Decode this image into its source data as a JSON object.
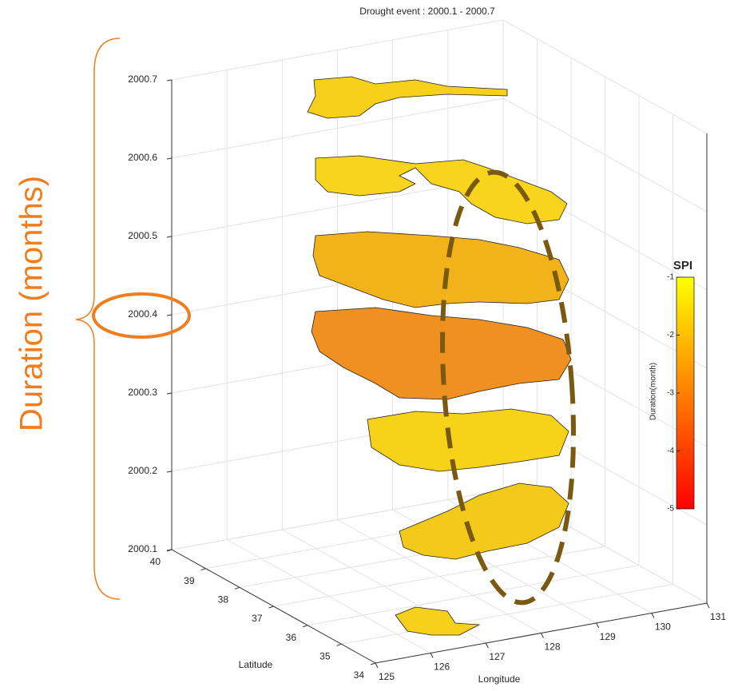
{
  "chart_data": {
    "type": "map3d",
    "title": "Drought event : 2000.1 - 2000.7",
    "xlabel": "Longitude",
    "ylabel": "Latitude",
    "xlim": [
      125,
      131
    ],
    "xticks": [
      125,
      126,
      127,
      128,
      129,
      130,
      131
    ],
    "ylim": [
      34,
      40
    ],
    "yticks": [
      34,
      35,
      36,
      37,
      38,
      39,
      40
    ],
    "zlim": [
      2000.1,
      2000.7
    ],
    "zticks": [
      2000.1,
      2000.2,
      2000.3,
      2000.4,
      2000.5,
      2000.6,
      2000.7
    ],
    "grid": true,
    "colorbar": {
      "title": "SPI",
      "label": "Duration(month)",
      "clim": [
        -5,
        -1
      ],
      "ticks": [
        -1,
        -2,
        -3,
        -4,
        -5
      ],
      "colors": [
        "#ffff00",
        "#ff0000"
      ]
    },
    "annotation": "Duration (months)"
  }
}
